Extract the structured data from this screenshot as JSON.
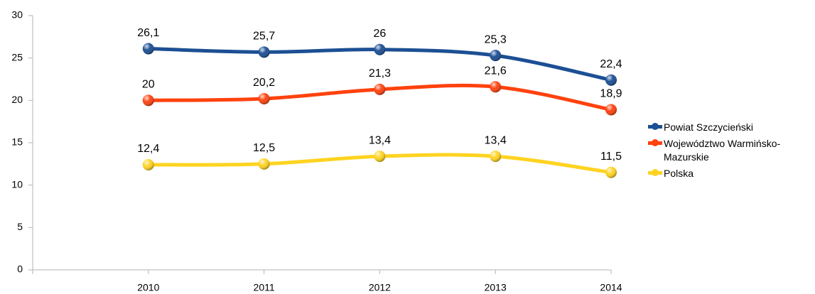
{
  "chart_data": {
    "type": "line",
    "categories": [
      "2010",
      "2011",
      "2012",
      "2013",
      "2014"
    ],
    "series": [
      {
        "name": "Powiat Szczycieński",
        "color": "#1c4f94",
        "values": [
          26.1,
          25.7,
          26,
          25.3,
          22.4
        ],
        "value_labels": [
          "26,1",
          "25,7",
          "26",
          "25,3",
          "22,4"
        ]
      },
      {
        "name": "Województwo Warmińsko-Mazurskie",
        "color": "#ff420e",
        "values": [
          20,
          20.2,
          21.3,
          21.6,
          18.9
        ],
        "value_labels": [
          "20",
          "20,2",
          "21,3",
          "21,6",
          "18,9"
        ]
      },
      {
        "name": "Polska",
        "color": "#ffd320",
        "values": [
          12.4,
          12.5,
          13.4,
          13.4,
          11.5
        ],
        "value_labels": [
          "12,4",
          "12,5",
          "13,4",
          "13,4",
          "11,5"
        ]
      }
    ],
    "ylim": [
      0,
      30
    ],
    "yticks": [
      0,
      5,
      10,
      15,
      20,
      25,
      30
    ],
    "grid": false,
    "legend": "right"
  }
}
